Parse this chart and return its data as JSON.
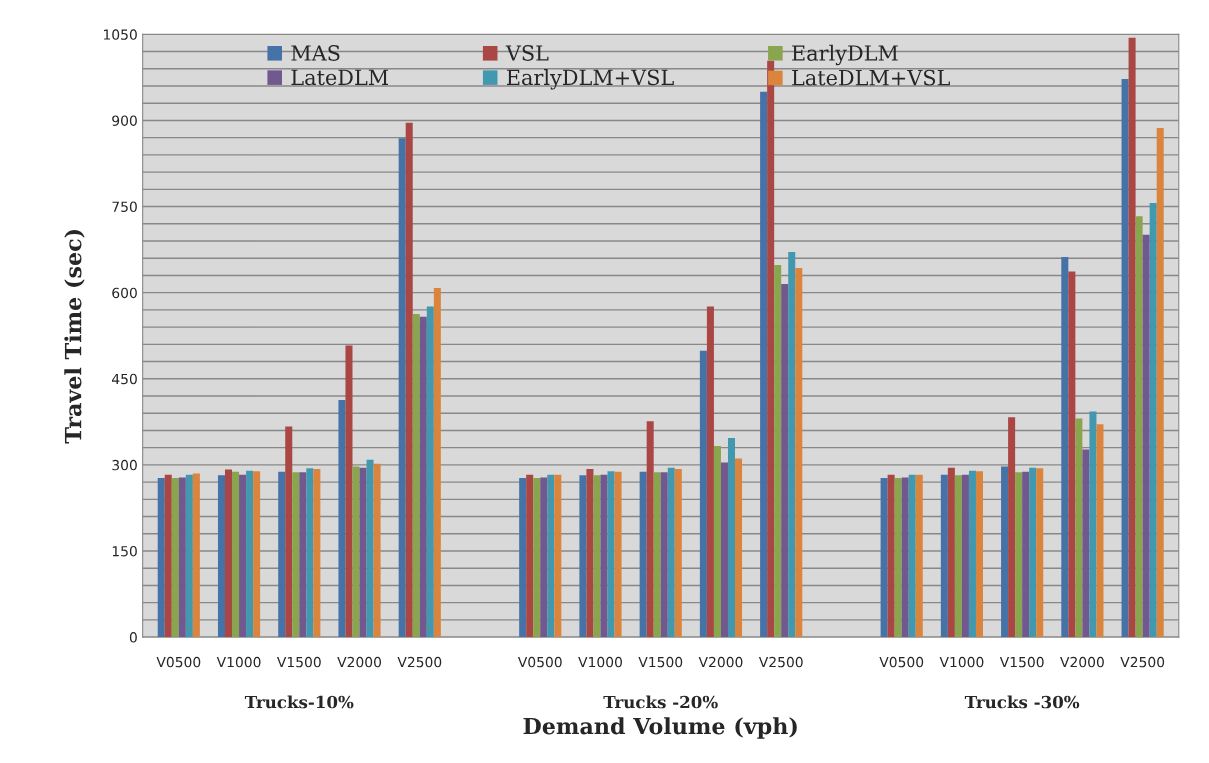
{
  "chart_data": {
    "type": "bar",
    "xlabel": "Demand Volume (vph)",
    "ylabel": "Travel Time (sec)",
    "categories": [
      "V0500",
      "V1000",
      "V1500",
      "V2000",
      "V2500",
      null,
      "V0500",
      "V1000",
      "V1500",
      "V2000",
      "V2500",
      null,
      "V0500",
      "V1000",
      "V1500",
      "V2000",
      "V2500"
    ],
    "series": [
      {
        "name": "MAS",
        "color": "#4572a7",
        "values": [
          277,
          282,
          288,
          413,
          869,
          null,
          277,
          282,
          288,
          499,
          950,
          null,
          277,
          283,
          297,
          662,
          972
        ]
      },
      {
        "name": "VSL",
        "color": "#aa4643",
        "values": [
          283,
          292,
          367,
          508,
          896,
          null,
          283,
          293,
          376,
          576,
          1004,
          null,
          283,
          295,
          383,
          637,
          1044
        ]
      },
      {
        "name": "EarlyDLM",
        "color": "#89a54e",
        "values": [
          277,
          288,
          287,
          297,
          563,
          null,
          277,
          282,
          287,
          333,
          648,
          null,
          277,
          282,
          287,
          381,
          733
        ]
      },
      {
        "name": "LateDLM",
        "color": "#71588f",
        "values": [
          278,
          283,
          287,
          295,
          558,
          null,
          278,
          283,
          287,
          304,
          615,
          null,
          278,
          283,
          288,
          327,
          701
        ]
      },
      {
        "name": "EarlyDLM+VSL",
        "color": "#4198af",
        "values": [
          283,
          290,
          294,
          309,
          576,
          null,
          283,
          289,
          295,
          347,
          671,
          null,
          283,
          290,
          295,
          393,
          756
        ]
      },
      {
        "name": "LateDLM+VSL",
        "color": "#db843d",
        "values": [
          285,
          289,
          293,
          302,
          608,
          null,
          283,
          288,
          293,
          311,
          643,
          null,
          283,
          289,
          294,
          371,
          887
        ]
      }
    ],
    "annotations": [
      "Trucks-10%",
      "Trucks -20%",
      "Trucks -30%"
    ],
    "ylim": [
      0,
      1050
    ],
    "yticks": [
      0,
      {
        "value": 30,
        "label": null
      },
      {
        "value": 60,
        "label": null
      },
      {
        "value": 90,
        "label": null
      },
      {
        "value": 120,
        "label": null
      },
      150,
      {
        "value": 180,
        "label": null
      },
      {
        "value": 210,
        "label": null
      },
      {
        "value": 240,
        "label": null
      },
      {
        "value": 270,
        "label": null
      },
      300,
      {
        "value": 330,
        "label": null
      },
      {
        "value": 360,
        "label": null
      },
      {
        "value": 390,
        "label": null
      },
      {
        "value": 420,
        "label": null
      },
      450,
      {
        "value": 480,
        "label": null
      },
      {
        "value": 510,
        "label": null
      },
      {
        "value": 540,
        "label": null
      },
      {
        "value": 570,
        "label": null
      },
      600,
      {
        "value": 630,
        "label": null
      },
      {
        "value": 660,
        "label": null
      },
      {
        "value": 690,
        "label": null
      },
      {
        "value": 720,
        "label": null
      },
      750,
      {
        "value": 780,
        "label": null
      },
      {
        "value": 810,
        "label": null
      },
      {
        "value": 840,
        "label": null
      },
      {
        "value": 870,
        "label": null
      },
      900,
      {
        "value": 930,
        "label": null
      },
      {
        "value": 960,
        "label": null
      },
      {
        "value": 990,
        "label": null
      },
      {
        "value": 1020,
        "label": null
      },
      1050
    ],
    "grid": "y",
    "legend": "top"
  }
}
